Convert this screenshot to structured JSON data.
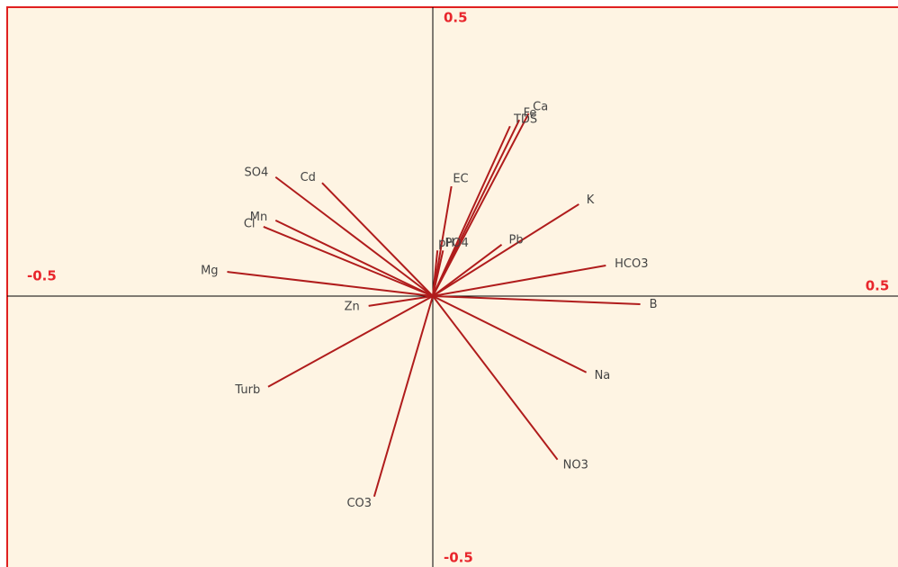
{
  "chart_data": {
    "type": "biplot",
    "xlim": [
      -0.5,
      0.5
    ],
    "ylim": [
      -0.5,
      0.5
    ],
    "xticks": [
      -0.5,
      0.5
    ],
    "yticks": [
      -0.5,
      0.5
    ],
    "color": "#b01c1c",
    "variables": [
      {
        "name": "Ca",
        "x": 0.103,
        "y": 0.316
      },
      {
        "name": "Fe",
        "x": 0.093,
        "y": 0.305
      },
      {
        "name": "TDS",
        "x": 0.083,
        "y": 0.294
      },
      {
        "name": "EC",
        "x": 0.02,
        "y": 0.19
      },
      {
        "name": "K",
        "x": 0.157,
        "y": 0.159
      },
      {
        "name": "pH",
        "x": 0.005,
        "y": 0.079
      },
      {
        "name": "PO4",
        "x": 0.011,
        "y": 0.079
      },
      {
        "name": "Pb",
        "x": 0.074,
        "y": 0.089
      },
      {
        "name": "HCO3",
        "x": 0.186,
        "y": 0.053
      },
      {
        "name": "B",
        "x": 0.223,
        "y": -0.014
      },
      {
        "name": "Na",
        "x": 0.165,
        "y": -0.132
      },
      {
        "name": "NO3",
        "x": 0.134,
        "y": -0.283
      },
      {
        "name": "CO3",
        "x": -0.063,
        "y": -0.347
      },
      {
        "name": "Turb",
        "x": -0.177,
        "y": -0.157
      },
      {
        "name": "Zn",
        "x": -0.069,
        "y": -0.017
      },
      {
        "name": "Mg",
        "x": -0.221,
        "y": 0.042
      },
      {
        "name": "Cl",
        "x": -0.182,
        "y": 0.12
      },
      {
        "name": "Mn",
        "x": -0.169,
        "y": 0.131
      },
      {
        "name": "SO4",
        "x": -0.169,
        "y": 0.206
      },
      {
        "name": "Cd",
        "x": -0.119,
        "y": 0.196
      }
    ]
  }
}
